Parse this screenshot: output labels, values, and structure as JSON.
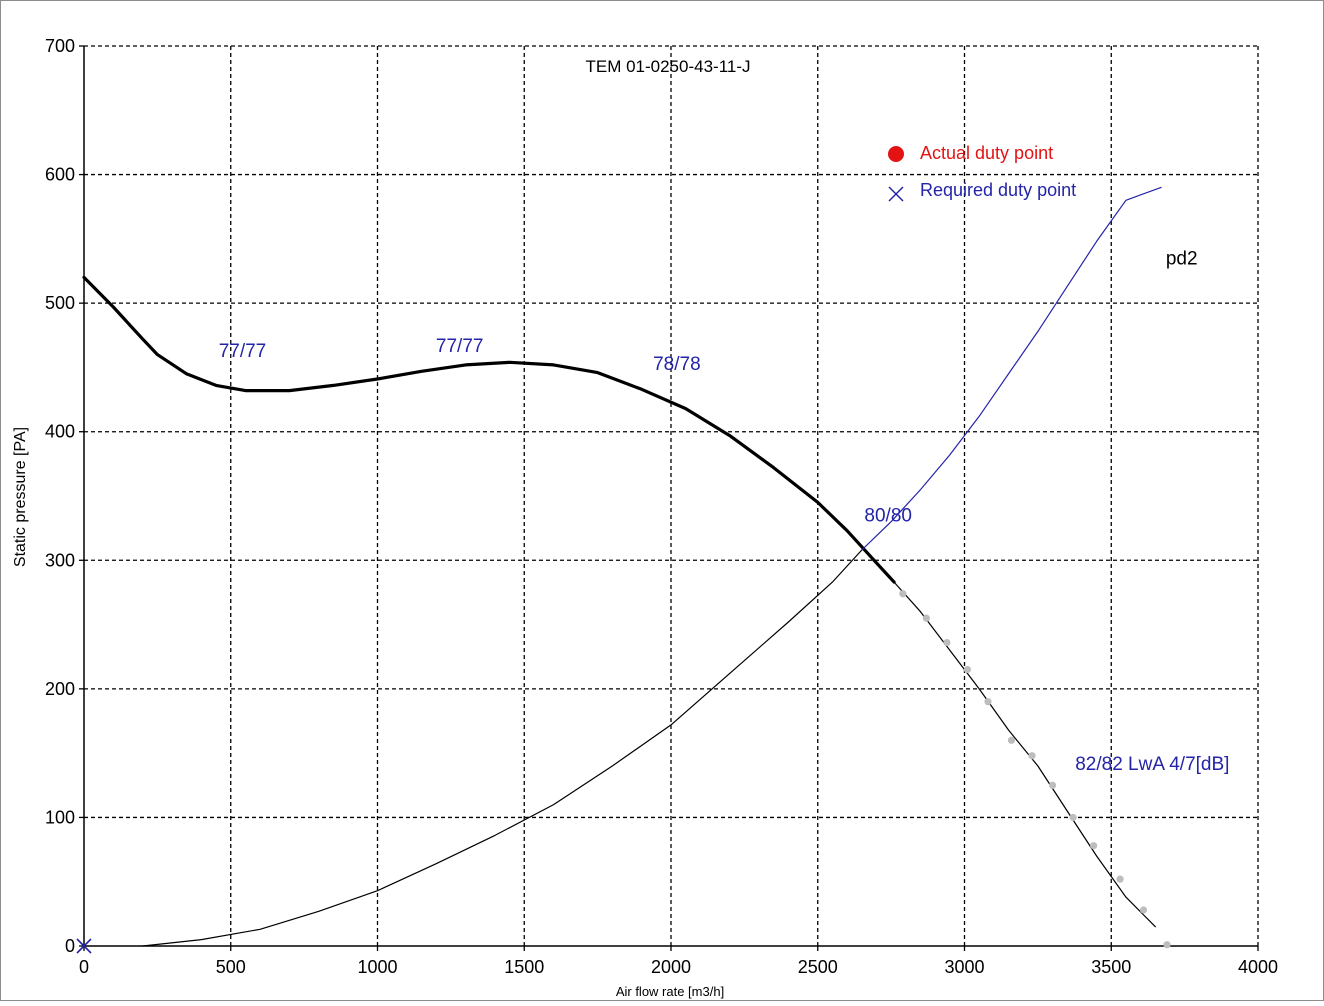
{
  "chart_data": {
    "type": "line",
    "title": "TEM 01-0250-43-11-J",
    "xlabel": "Air flow rate [m3/h]",
    "ylabel": "Static pressure [PA]",
    "xlim": [
      0,
      4000
    ],
    "ylim": [
      0,
      700
    ],
    "x_ticks": [
      "0",
      "500",
      "1000",
      "1500",
      "2000",
      "2500",
      "3000",
      "3500",
      "4000"
    ],
    "y_ticks": [
      "0",
      "100",
      "200",
      "300",
      "400",
      "500",
      "600",
      "700"
    ],
    "x_tick_values": [
      0,
      500,
      1000,
      1500,
      2000,
      2500,
      3000,
      3500,
      4000
    ],
    "y_tick_values": [
      0,
      100,
      200,
      300,
      400,
      500,
      600,
      700
    ],
    "grid": true,
    "legend": [
      {
        "label": "Actual duty point",
        "color": "#e31313",
        "marker": "filled-circle"
      },
      {
        "label": "Required duty point",
        "color": "#2424a8",
        "marker": "x"
      }
    ],
    "series": [
      {
        "name": "",
        "role": "fan-curve",
        "color": "#000000",
        "points": [
          [
            0,
            520
          ],
          [
            100,
            497
          ],
          [
            200,
            472
          ],
          [
            250,
            460
          ],
          [
            350,
            445
          ],
          [
            450,
            436
          ],
          [
            550,
            432
          ],
          [
            700,
            432
          ],
          [
            850,
            436
          ],
          [
            1000,
            441
          ],
          [
            1150,
            447
          ],
          [
            1300,
            452
          ],
          [
            1450,
            454
          ],
          [
            1600,
            452
          ],
          [
            1750,
            446
          ],
          [
            1900,
            433
          ],
          [
            2050,
            418
          ],
          [
            2200,
            397
          ],
          [
            2350,
            372
          ],
          [
            2500,
            345
          ],
          [
            2600,
            323
          ],
          [
            2700,
            298
          ],
          [
            2760,
            283
          ]
        ]
      },
      {
        "name": "",
        "role": "fan-curve-extension",
        "color": "#000000",
        "points": [
          [
            2760,
            283
          ],
          [
            2850,
            260
          ],
          [
            2950,
            230
          ],
          [
            3050,
            200
          ],
          [
            3150,
            168
          ],
          [
            3250,
            140
          ],
          [
            3350,
            105
          ],
          [
            3450,
            70
          ],
          [
            3550,
            38
          ],
          [
            3650,
            15
          ]
        ]
      },
      {
        "name": "pd2",
        "role": "system-curve",
        "color": "#2424a8",
        "points": [
          [
            2650,
            308
          ],
          [
            2750,
            330
          ],
          [
            2850,
            355
          ],
          [
            2950,
            382
          ],
          [
            3050,
            412
          ],
          [
            3150,
            445
          ],
          [
            3250,
            478
          ],
          [
            3350,
            513
          ],
          [
            3450,
            548
          ],
          [
            3550,
            580
          ],
          [
            3670,
            590
          ]
        ]
      },
      {
        "name": "",
        "role": "system-curve-lower",
        "color": "#000000",
        "points": [
          [
            200,
            0
          ],
          [
            400,
            5
          ],
          [
            600,
            13
          ],
          [
            800,
            27
          ],
          [
            1000,
            43
          ],
          [
            1200,
            64
          ],
          [
            1400,
            86
          ],
          [
            1600,
            110
          ],
          [
            1800,
            140
          ],
          [
            2000,
            172
          ],
          [
            2200,
            212
          ],
          [
            2400,
            252
          ],
          [
            2550,
            283
          ],
          [
            2650,
            308
          ]
        ]
      }
    ],
    "grey_points": {
      "color": "#bdbdbd",
      "x": [
        2790,
        2870,
        2940,
        3010,
        3080,
        3160,
        3230,
        3300,
        3370,
        3440,
        3530,
        3610,
        3690
      ],
      "y": [
        274,
        255,
        236,
        215,
        190,
        160,
        148,
        125,
        100,
        78,
        52,
        28,
        1
      ]
    },
    "required_duty_point": {
      "x": 0,
      "y": 0
    },
    "annotations": [
      {
        "text": "77/77",
        "x": 540,
        "y": 458,
        "color": "#2424a8"
      },
      {
        "text": "77/77",
        "x": 1280,
        "y": 462,
        "color": "#2424a8"
      },
      {
        "text": "78/78",
        "x": 2020,
        "y": 448,
        "color": "#2424a8"
      },
      {
        "text": "80/80",
        "x": 2740,
        "y": 330,
        "color": "#2424a8"
      },
      {
        "text": "pd2",
        "x": 3740,
        "y": 530,
        "color": "#000000"
      },
      {
        "text": "82/82 LwA 4/7[dB]",
        "x": 3640,
        "y": 137,
        "color": "#2424a8"
      }
    ]
  }
}
